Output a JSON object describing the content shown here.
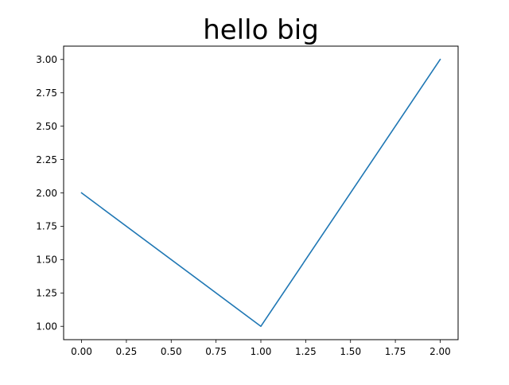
{
  "chart_data": {
    "type": "line",
    "title": "hello big",
    "xlabel": "",
    "ylabel": "",
    "x": [
      0,
      1,
      2
    ],
    "series": [
      {
        "values": [
          2,
          1,
          3
        ],
        "color": "#1f77b4"
      }
    ],
    "xlim": [
      -0.1,
      2.1
    ],
    "ylim": [
      0.9,
      3.1
    ],
    "xticks": [
      0,
      0.25,
      0.5,
      0.75,
      1,
      1.25,
      1.5,
      1.75,
      2
    ],
    "xtick_labels": [
      "0.00",
      "0.25",
      "0.50",
      "0.75",
      "1.00",
      "1.25",
      "1.50",
      "1.75",
      "2.00"
    ],
    "yticks": [
      1,
      1.25,
      1.5,
      1.75,
      2,
      2.25,
      2.5,
      2.75,
      3
    ],
    "ytick_labels": [
      "1.00",
      "1.25",
      "1.50",
      "1.75",
      "2.00",
      "2.25",
      "2.50",
      "2.75",
      "3.00"
    ],
    "grid": false,
    "legend": "none"
  }
}
